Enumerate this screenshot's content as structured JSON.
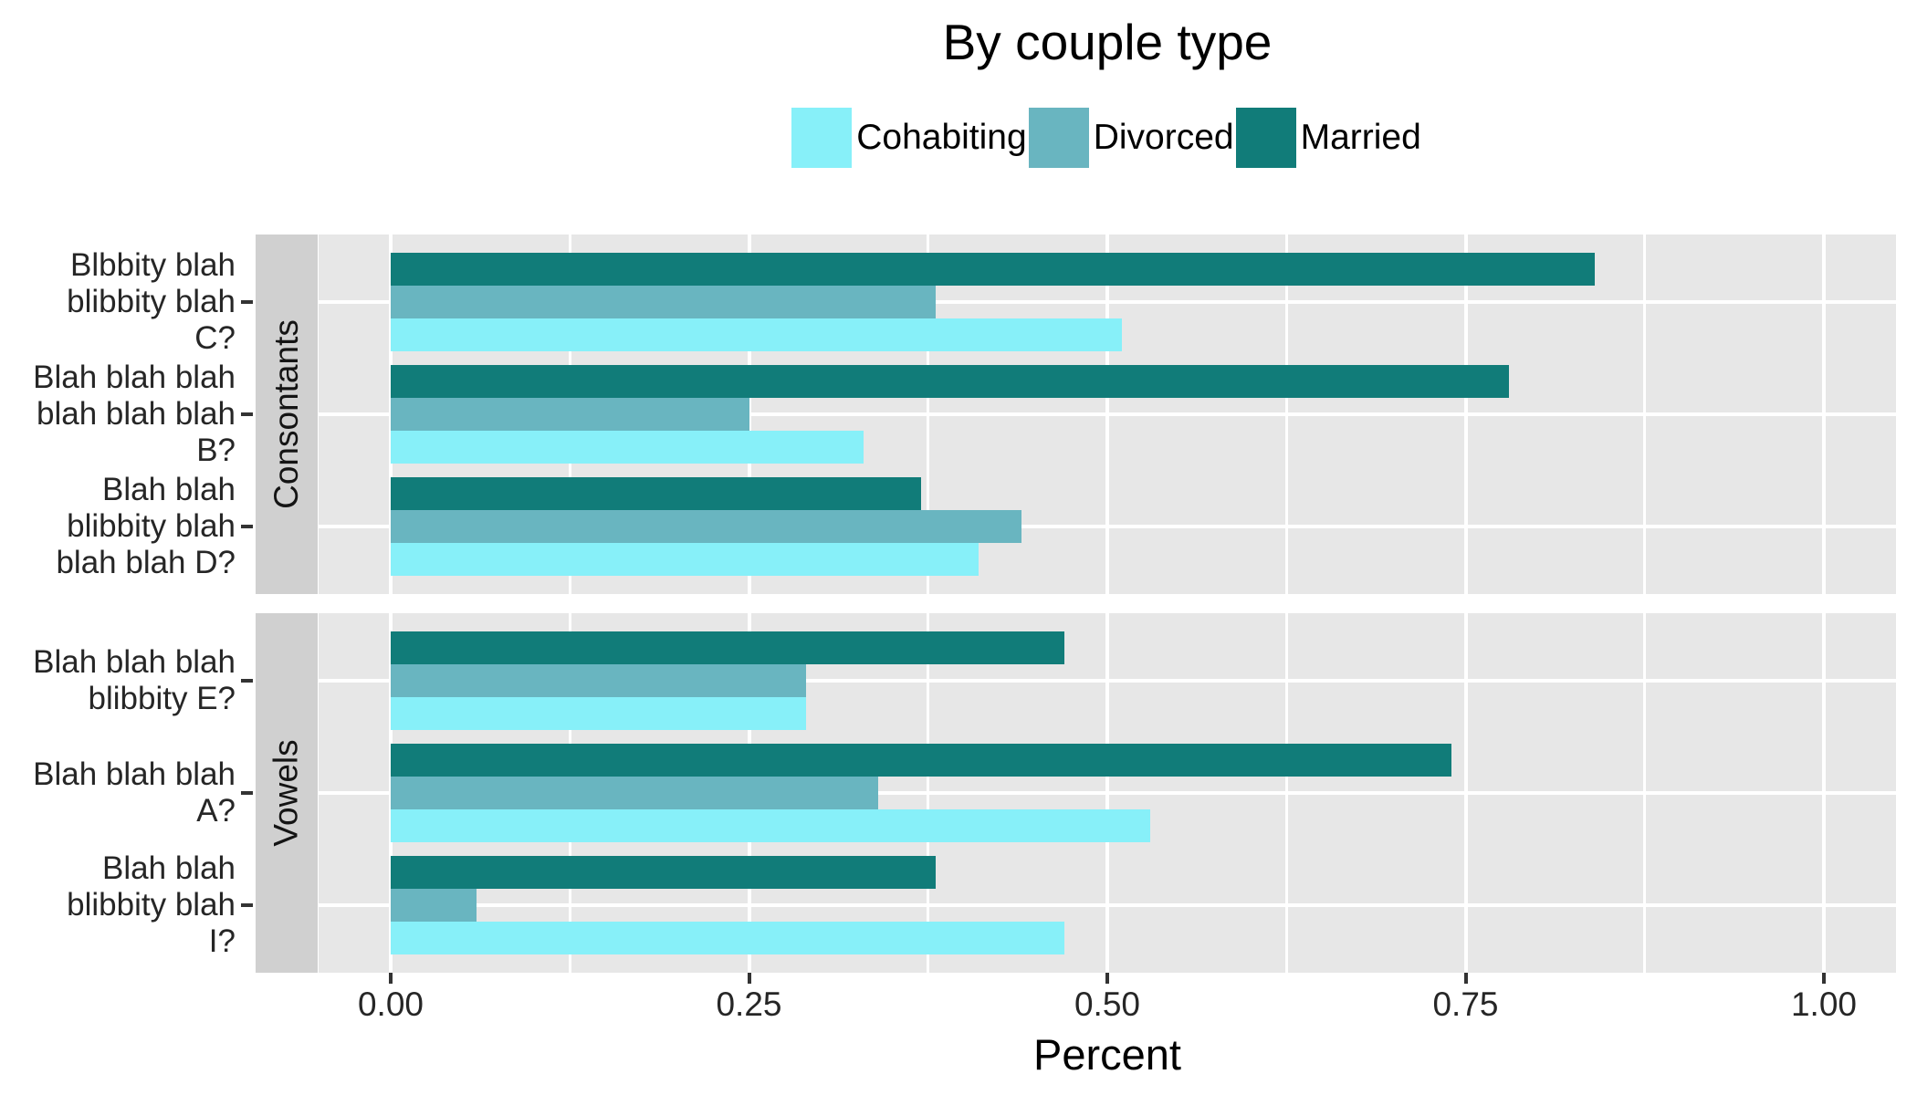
{
  "title": "By couple type",
  "legend": {
    "position": "top-center",
    "items": [
      {
        "label": "Cohabiting",
        "color": "#87f0f9"
      },
      {
        "label": "Divorced",
        "color": "#69b5c0"
      },
      {
        "label": "Married",
        "color": "#117c79"
      }
    ]
  },
  "x_axis": {
    "label": "Percent",
    "tick_labels": [
      "0.00",
      "0.25",
      "0.50",
      "0.75",
      "1.00"
    ],
    "tick_values": [
      0,
      0.25,
      0.5,
      0.75,
      1.0
    ]
  },
  "colors": {
    "panel_background": "#e7e7e7",
    "strip_background": "#d0d0d0",
    "gridline": "#ffffff",
    "tick_mark": "#333333",
    "axis_text": "#262626",
    "title_text": "#000000"
  },
  "chart_data": {
    "type": "bar",
    "orientation": "horizontal",
    "title": "By couple type",
    "xlabel": "Percent",
    "ylabel": "",
    "xlim": [
      0,
      1.05
    ],
    "grid": "on",
    "legend_position": "top",
    "x_major": [
      0,
      0.25,
      0.5,
      0.75,
      1.0
    ],
    "x_minor": [
      0.125,
      0.375,
      0.625,
      0.875
    ],
    "series_order_top_to_bottom": [
      "Married",
      "Divorced",
      "Cohabiting"
    ],
    "facets": [
      {
        "strip": "Consontants",
        "categories": [
          [
            "Blbbity blah",
            "blibbity blah",
            "C?"
          ],
          [
            "Blah blah blah",
            "blah blah blah",
            "B?"
          ],
          [
            "Blah blah",
            "blibbity blah",
            "blah blah D?"
          ]
        ],
        "series": [
          {
            "name": "Married",
            "color": "#117c79",
            "values": [
              0.84,
              0.78,
              0.37
            ]
          },
          {
            "name": "Divorced",
            "color": "#69b5c0",
            "values": [
              0.38,
              0.25,
              0.44
            ]
          },
          {
            "name": "Cohabiting",
            "color": "#87f0f9",
            "values": [
              0.51,
              0.33,
              0.41
            ]
          }
        ]
      },
      {
        "strip": "Vowels",
        "categories": [
          [
            "Blah blah blah",
            "blibbity E?"
          ],
          [
            "Blah blah blah",
            "A?"
          ],
          [
            "Blah blah",
            "blibbity blah",
            "I?"
          ]
        ],
        "series": [
          {
            "name": "Married",
            "color": "#117c79",
            "values": [
              0.47,
              0.74,
              0.38
            ]
          },
          {
            "name": "Divorced",
            "color": "#69b5c0",
            "values": [
              0.29,
              0.34,
              0.06
            ]
          },
          {
            "name": "Cohabiting",
            "color": "#87f0f9",
            "values": [
              0.29,
              0.53,
              0.47
            ]
          }
        ]
      }
    ]
  }
}
